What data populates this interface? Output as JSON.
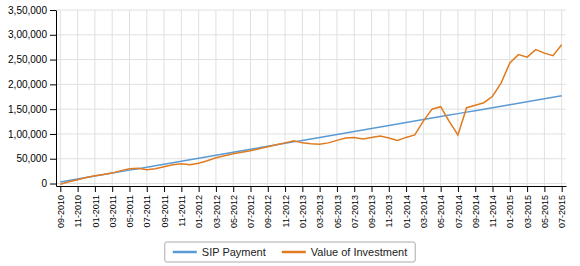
{
  "chart_data": {
    "type": "line",
    "categories": [
      "09-2010",
      null,
      "11-2010",
      null,
      "01-2011",
      null,
      "03-2011",
      null,
      "05-2011",
      null,
      "07-2011",
      null,
      "09-2011",
      null,
      "11-2011",
      null,
      "01-2012",
      null,
      "03-2012",
      null,
      "05-2012",
      null,
      "07-2012",
      null,
      "09-2012",
      null,
      "11-2012",
      null,
      "01-2013",
      null,
      "03-2013",
      null,
      "05-2013",
      null,
      "07-2013",
      null,
      "09-2013",
      null,
      "11-2013",
      null,
      "01-2014",
      null,
      "03-2014",
      null,
      "05-2014",
      null,
      "07-2014",
      null,
      "09-2014",
      null,
      "11-2014",
      null,
      "01-2015",
      null,
      "03-2015",
      null,
      "05-2015",
      null,
      "07-2015"
    ],
    "series": [
      {
        "name": "SIP Payment",
        "color": "#5b9bd5",
        "values": [
          3000,
          6000,
          9000,
          12000,
          15000,
          18000,
          21000,
          24000,
          27000,
          30000,
          33000,
          36000,
          39000,
          42000,
          45000,
          48000,
          51000,
          54000,
          57000,
          60000,
          63000,
          66000,
          69000,
          72000,
          75000,
          78000,
          81000,
          84000,
          87000,
          90000,
          93000,
          96000,
          99000,
          102000,
          105000,
          108000,
          111000,
          114000,
          117000,
          120000,
          123000,
          126000,
          129000,
          132000,
          135000,
          138000,
          141000,
          144000,
          147000,
          150000,
          153000,
          156000,
          159000,
          162000,
          165000,
          168000,
          171000,
          174000,
          177000
        ]
      },
      {
        "name": "Value of Investment",
        "color": "#e07b20",
        "values": [
          -1500,
          3500,
          7500,
          12000,
          15500,
          18000,
          21000,
          26000,
          30000,
          31000,
          28000,
          30000,
          34000,
          38000,
          40000,
          38000,
          41000,
          46000,
          52000,
          56000,
          60000,
          63000,
          66000,
          70000,
          74000,
          78000,
          82000,
          86000,
          82000,
          80000,
          79000,
          82000,
          87000,
          92000,
          93000,
          90000,
          93000,
          96000,
          92000,
          87000,
          93000,
          98000,
          126000,
          150000,
          155000,
          125000,
          98000,
          153000,
          158000,
          163000,
          176000,
          203000,
          243000,
          260000,
          255000,
          270000,
          263000,
          258000,
          280000
        ]
      }
    ],
    "ylim": [
      -5000,
      350000
    ],
    "yticks": [
      0,
      {
        "value": 50000,
        "label": "50,000"
      },
      {
        "value": 100000,
        "label": "1,00,000"
      },
      {
        "value": 150000,
        "label": "1,50,000"
      },
      {
        "value": 200000,
        "label": "2,00,000"
      },
      {
        "value": 250000,
        "label": "2,50,000"
      },
      {
        "value": 300000,
        "label": "3,00,000"
      },
      {
        "value": 350000,
        "label": "3,50,000"
      }
    ],
    "grid": true,
    "legend": "bottom"
  }
}
